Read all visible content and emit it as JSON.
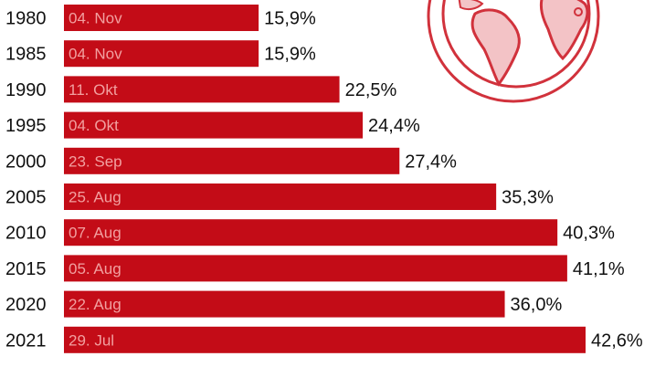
{
  "colors": {
    "bar": "#c30c17",
    "date_text": "#f2a0a0",
    "globe": "#d1323c",
    "globe_fill": "#f3c3c6"
  },
  "icon": "globe-icon",
  "chart_data": {
    "type": "bar",
    "orientation": "horizontal",
    "categories": [
      "1980",
      "1985",
      "1990",
      "1995",
      "2000",
      "2005",
      "2010",
      "2015",
      "2020",
      "2021"
    ],
    "values": [
      15.9,
      15.9,
      22.5,
      24.4,
      27.4,
      35.3,
      40.3,
      41.1,
      36.0,
      42.6
    ],
    "value_labels": [
      "15,9%",
      "15,9%",
      "22,5%",
      "24,4%",
      "27,4%",
      "35,3%",
      "40,3%",
      "41,1%",
      "36,0%",
      "42,6%"
    ],
    "bar_labels": [
      "04. Nov",
      "04. Nov",
      "11. Okt",
      "04. Okt",
      "23. Sep",
      "25. Aug",
      "07. Aug",
      "05. Aug",
      "22. Aug",
      "29. Jul"
    ],
    "xlim": [
      0,
      42.6
    ]
  }
}
